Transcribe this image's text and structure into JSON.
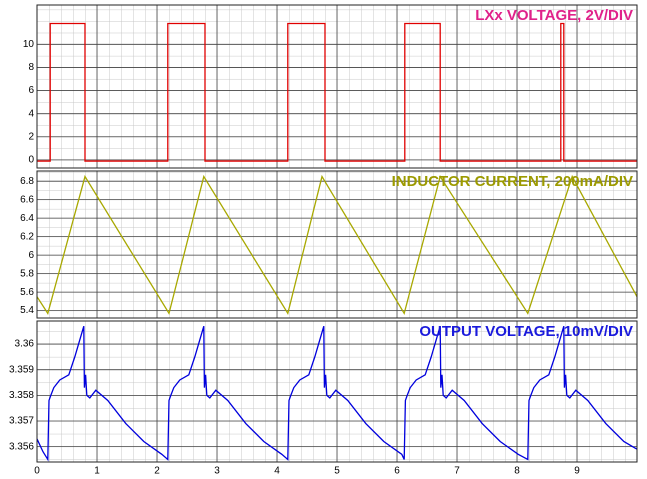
{
  "chart_data": [
    {
      "type": "line",
      "title": "LXx VOLTAGE, 2V/DIV",
      "x": [
        0,
        0.22,
        0.22,
        0.8,
        0.8,
        2.18,
        2.18,
        2.8,
        2.8,
        4.18,
        4.18,
        4.8,
        4.8,
        6.13,
        6.13,
        6.72,
        6.72,
        8.73,
        8.73,
        8.78,
        8.78,
        10
      ],
      "series": [
        {
          "color": "#e00000",
          "values": [
            -0.1,
            -0.1,
            11.8,
            11.8,
            -0.1,
            -0.1,
            11.8,
            11.8,
            -0.1,
            -0.1,
            11.8,
            11.8,
            -0.1,
            -0.1,
            11.8,
            11.8,
            -0.1,
            -0.1,
            11.8,
            11.8,
            -0.1,
            -0.1
          ]
        }
      ],
      "xlim": [
        0,
        10
      ],
      "ylim": [
        -0.7,
        13.4
      ],
      "yticks": [
        0,
        2,
        4,
        6,
        8,
        10
      ],
      "grid": true
    },
    {
      "type": "line",
      "title": "INDUCTOR CURRENT, 200mA/DIV",
      "x": [
        0,
        0.18,
        0.8,
        2.2,
        2.78,
        4.18,
        4.75,
        6.12,
        6.72,
        8.18,
        8.92,
        10
      ],
      "series": [
        {
          "color": "#a8a800",
          "values": [
            5.55,
            5.37,
            6.85,
            5.37,
            6.85,
            5.37,
            6.85,
            5.37,
            6.85,
            5.37,
            6.85,
            5.55
          ]
        }
      ],
      "xlim": [
        0,
        10
      ],
      "ylim": [
        5.32,
        6.91
      ],
      "yticks": [
        5.4,
        5.6,
        5.8,
        6,
        6.2,
        6.4,
        6.6,
        6.8
      ],
      "grid": true
    },
    {
      "type": "line",
      "title": "OUTPUT VOLTAGE, 10mV/DIV",
      "x": [
        0,
        0.1,
        0.18,
        0.2,
        0.23,
        0.28,
        0.38,
        0.53,
        0.63,
        0.78,
        0.79,
        0.81,
        0.83,
        0.88,
        0.98,
        1.18,
        1.48,
        1.78,
        2.08,
        2.18,
        2.2,
        2.23,
        2.28,
        2.38,
        2.53,
        2.63,
        2.78,
        2.79,
        2.81,
        2.83,
        2.88,
        2.98,
        3.18,
        3.48,
        3.78,
        4.08,
        4.18,
        4.2,
        4.23,
        4.28,
        4.38,
        4.53,
        4.63,
        4.78,
        4.79,
        4.81,
        4.83,
        4.88,
        4.98,
        5.18,
        5.48,
        5.78,
        6.08,
        6.12,
        6.14,
        6.17,
        6.22,
        6.32,
        6.47,
        6.57,
        6.72,
        6.73,
        6.75,
        6.77,
        6.82,
        6.92,
        7.12,
        7.42,
        7.72,
        8.02,
        8.18,
        8.2,
        8.23,
        8.28,
        8.38,
        8.53,
        8.63,
        8.78,
        8.79,
        8.81,
        8.83,
        8.88,
        8.98,
        9.18,
        9.48,
        9.78,
        10
      ],
      "series": [
        {
          "color": "#0000dd",
          "values": [
            3.3563,
            3.3558,
            3.3555,
            3.3578,
            3.358,
            3.3583,
            3.3586,
            3.3588,
            3.3595,
            3.3607,
            3.3583,
            3.3588,
            3.358,
            3.3579,
            3.3582,
            3.3578,
            3.3569,
            3.3562,
            3.3557,
            3.3555,
            3.3578,
            3.358,
            3.3583,
            3.3586,
            3.3588,
            3.3595,
            3.3607,
            3.3583,
            3.3588,
            3.358,
            3.3579,
            3.3582,
            3.3578,
            3.3569,
            3.3562,
            3.3557,
            3.3555,
            3.3578,
            3.358,
            3.3583,
            3.3586,
            3.3588,
            3.3595,
            3.3607,
            3.3583,
            3.3588,
            3.358,
            3.3579,
            3.3582,
            3.3578,
            3.3569,
            3.3562,
            3.3557,
            3.3555,
            3.3578,
            3.358,
            3.3583,
            3.3586,
            3.3588,
            3.3595,
            3.3607,
            3.3583,
            3.3588,
            3.358,
            3.3579,
            3.3582,
            3.3578,
            3.3569,
            3.3562,
            3.3557,
            3.3555,
            3.3578,
            3.358,
            3.3583,
            3.3586,
            3.3588,
            3.3595,
            3.3607,
            3.3583,
            3.3588,
            3.358,
            3.3579,
            3.3582,
            3.3578,
            3.3569,
            3.3562,
            3.3559
          ]
        }
      ],
      "xlim": [
        0,
        10
      ],
      "ylim": [
        3.3554,
        3.3609
      ],
      "yticks": [
        3.356,
        3.357,
        3.358,
        3.359,
        3.36
      ],
      "xticks": [
        0,
        1,
        2,
        3,
        4,
        5,
        6,
        7,
        8,
        9
      ],
      "grid": true
    }
  ]
}
